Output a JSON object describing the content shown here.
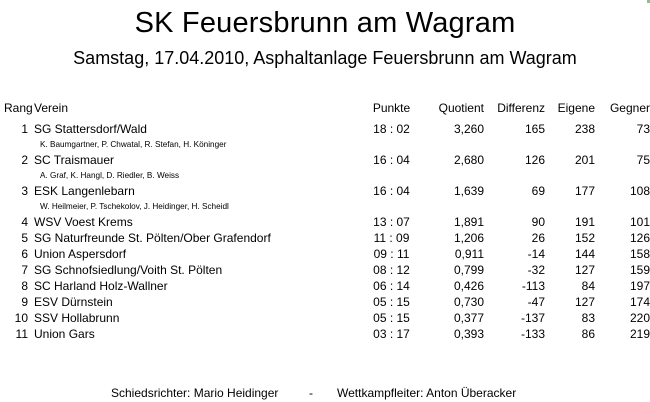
{
  "title": "SK Feuersbrunn am Wagram",
  "subtitle": "Samstag, 17.04.2010, Asphaltanlage Feuersbrunn am Wagram",
  "columns": {
    "rank": "Rang",
    "club": "Verein",
    "points": "Punkte",
    "quotient": "Quotient",
    "difference": "Differenz",
    "own": "Eigene",
    "opponent": "Gegner"
  },
  "rows": [
    {
      "rank": "1",
      "club": "SG Stattersdorf/Wald",
      "points": "18 : 02",
      "quotient": "3,260",
      "difference": "165",
      "own": "238",
      "opponent": "73",
      "members": "K. Baumgartner, P. Chwatal, R. Stefan, H. Köninger"
    },
    {
      "rank": "2",
      "club": "SC Traismauer",
      "points": "16 : 04",
      "quotient": "2,680",
      "difference": "126",
      "own": "201",
      "opponent": "75",
      "members": "A. Graf, K. Hangl, D. Riedler, B. Weiss"
    },
    {
      "rank": "3",
      "club": "ESK Langenlebarn",
      "points": "16 : 04",
      "quotient": "1,639",
      "difference": "69",
      "own": "177",
      "opponent": "108",
      "members": "W. Heilmeier, P. Tschekolov, J. Heidinger, H. Scheidl"
    },
    {
      "rank": "4",
      "club": "WSV Voest Krems",
      "points": "13 : 07",
      "quotient": "1,891",
      "difference": "90",
      "own": "191",
      "opponent": "101"
    },
    {
      "rank": "5",
      "club": "SG Naturfreunde St. Pölten/Ober Grafendorf",
      "points": "11 : 09",
      "quotient": "1,206",
      "difference": "26",
      "own": "152",
      "opponent": "126"
    },
    {
      "rank": "6",
      "club": "Union Aspersdorf",
      "points": "09 : 11",
      "quotient": "0,911",
      "difference": "-14",
      "own": "144",
      "opponent": "158"
    },
    {
      "rank": "7",
      "club": "SG Schnofsiedlung/Voith St. Pölten",
      "points": "08 : 12",
      "quotient": "0,799",
      "difference": "-32",
      "own": "127",
      "opponent": "159"
    },
    {
      "rank": "8",
      "club": "SC Harland Holz-Wallner",
      "points": "06 : 14",
      "quotient": "0,426",
      "difference": "-113",
      "own": "84",
      "opponent": "197"
    },
    {
      "rank": "9",
      "club": "ESV Dürnstein",
      "points": "05 : 15",
      "quotient": "0,730",
      "difference": "-47",
      "own": "127",
      "opponent": "174"
    },
    {
      "rank": "10",
      "club": "SSV Hollabrunn",
      "points": "05 : 15",
      "quotient": "0,377",
      "difference": "-137",
      "own": "83",
      "opponent": "220"
    },
    {
      "rank": "11",
      "club": "Union Gars",
      "points": "03 : 17",
      "quotient": "0,393",
      "difference": "-133",
      "own": "86",
      "opponent": "219"
    }
  ],
  "footer": {
    "referee": "Schiedsrichter: Mario Heidinger",
    "separator": "-",
    "competition_lead": "Wettkampfleiter: Anton Überacker"
  }
}
